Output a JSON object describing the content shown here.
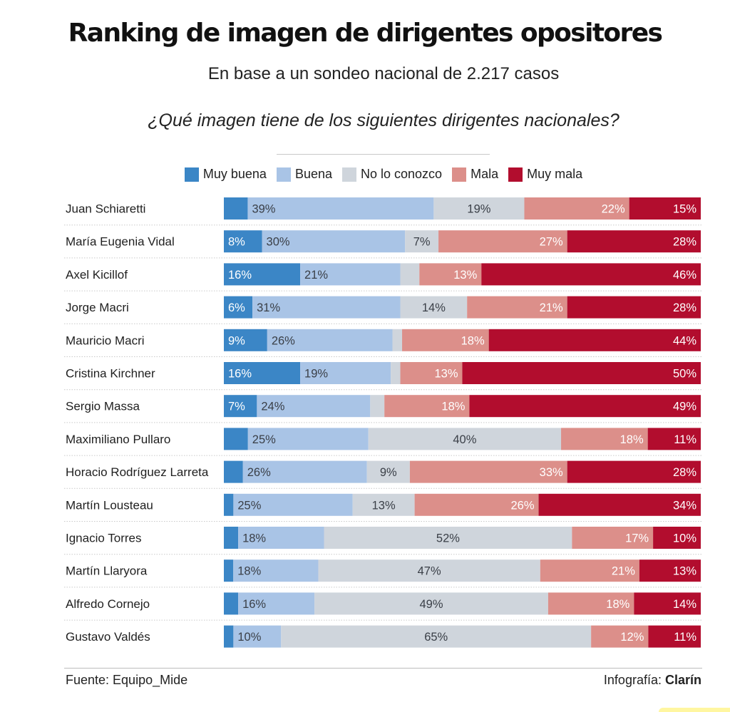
{
  "header": {
    "title": "Ranking de imagen de dirigentes opositores",
    "subtitle": "En base a un sondeo nacional de 2.217 casos",
    "question": "¿Qué imagen tiene de los siguientes dirigentes nacionales?"
  },
  "legend": [
    {
      "label": "Muy buena",
      "color": "#3b86c6"
    },
    {
      "label": "Buena",
      "color": "#a9c4e6"
    },
    {
      "label": "No lo conozco",
      "color": "#cfd5dc"
    },
    {
      "label": "Mala",
      "color": "#dc8f8a"
    },
    {
      "label": "Muy mala",
      "color": "#b20d2e"
    }
  ],
  "chart_data": {
    "type": "bar",
    "orientation": "horizontal",
    "stacked": true,
    "categories": [
      "Juan Schiaretti",
      "María Eugenia Vidal",
      "Axel Kicillof",
      "Jorge Macri",
      "Mauricio Macri",
      "Cristina Kirchner",
      "Sergio Massa",
      "Maximiliano Pullaro",
      "Horacio Rodríguez Larreta",
      "Martín Lousteau",
      "Ignacio Torres",
      "Martín Llaryora",
      "Alfredo Cornejo",
      "Gustavo Valdés"
    ],
    "series": [
      {
        "name": "Muy buena",
        "values": [
          5,
          8,
          16,
          6,
          9,
          16,
          7,
          5,
          4,
          2,
          3,
          2,
          3,
          2
        ],
        "labels": [
          "",
          "8%",
          "16%",
          "6%",
          "9%",
          "16%",
          "7%",
          "",
          "",
          "",
          "",
          "",
          "",
          ""
        ]
      },
      {
        "name": "Buena",
        "values": [
          39,
          30,
          21,
          31,
          26,
          19,
          24,
          25,
          26,
          25,
          18,
          18,
          16,
          10
        ],
        "labels": [
          "39%",
          "30%",
          "21%",
          "31%",
          "26%",
          "19%",
          "24%",
          "25%",
          "26%",
          "25%",
          "18%",
          "18%",
          "16%",
          "10%"
        ]
      },
      {
        "name": "No lo conozco",
        "values": [
          19,
          7,
          4,
          14,
          2,
          2,
          3,
          40,
          9,
          13,
          52,
          47,
          49,
          65
        ],
        "labels": [
          "19%",
          "7%",
          "",
          "14%",
          "",
          "",
          "",
          "40%",
          "9%",
          "13%",
          "52%",
          "47%",
          "49%",
          "65%"
        ]
      },
      {
        "name": "Mala",
        "values": [
          22,
          27,
          13,
          21,
          18,
          13,
          18,
          18,
          33,
          26,
          17,
          21,
          18,
          12
        ],
        "labels": [
          "22%",
          "27%",
          "13%",
          "21%",
          "18%",
          "13%",
          "18%",
          "18%",
          "33%",
          "26%",
          "17%",
          "21%",
          "18%",
          "12%"
        ]
      },
      {
        "name": "Muy mala",
        "values": [
          15,
          28,
          46,
          28,
          44,
          50,
          49,
          11,
          28,
          34,
          10,
          13,
          14,
          11
        ],
        "labels": [
          "15%",
          "28%",
          "46%",
          "28%",
          "44%",
          "50%",
          "49%",
          "11%",
          "28%",
          "34%",
          "10%",
          "13%",
          "14%",
          "11%"
        ]
      }
    ],
    "xlim": [
      0,
      100
    ]
  },
  "footer": {
    "source": "Fuente: Equipo_Mide",
    "credit_prefix": "Infografía: ",
    "credit_brand": "Clarín"
  }
}
